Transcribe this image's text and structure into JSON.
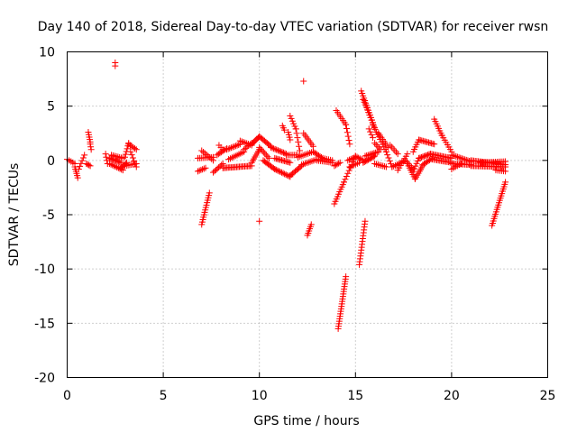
{
  "chart_data": {
    "type": "scatter",
    "title": "Day 140 of 2018, Sidereal Day-to-day VTEC variation (SDTVAR) for receiver rwsn",
    "xlabel": "GPS time / hours",
    "ylabel": "SDTVAR / TECUs",
    "xlim": [
      0,
      25
    ],
    "ylim": [
      -20,
      10
    ],
    "xticks": [
      0,
      5,
      10,
      15,
      20,
      25
    ],
    "xtick_labels": [
      "0",
      "5",
      "10",
      "15",
      "20",
      "25"
    ],
    "yticks": [
      -20,
      -15,
      -10,
      -5,
      0,
      5,
      10
    ],
    "ytick_labels": [
      "-20",
      "-15",
      "-10",
      "-5",
      "0",
      "5",
      "10"
    ],
    "grid": true,
    "marker": "+",
    "color": "#ff0000",
    "segments": [
      {
        "x0": 0.0,
        "y0": 0.1,
        "x1": 0.4,
        "y1": -0.3,
        "n": 5
      },
      {
        "x0": 0.4,
        "y0": -0.6,
        "x1": 0.55,
        "y1": -1.6,
        "n": 6
      },
      {
        "x0": 0.6,
        "y0": -0.8,
        "x1": 0.9,
        "y1": 0.5,
        "n": 6
      },
      {
        "x0": 1.0,
        "y0": -0.3,
        "x1": 1.2,
        "y1": -0.5,
        "n": 4
      },
      {
        "x0": 1.1,
        "y0": 2.6,
        "x1": 1.2,
        "y1": 1.7,
        "n": 5
      },
      {
        "x0": 1.2,
        "y0": 1.5,
        "x1": 1.25,
        "y1": 1.0,
        "n": 3
      },
      {
        "x0": 2.0,
        "y0": 0.6,
        "x1": 2.1,
        "y1": -0.3,
        "n": 4
      },
      {
        "x0": 2.2,
        "y0": 0.2,
        "x1": 2.8,
        "y1": -0.2,
        "n": 10
      },
      {
        "x0": 2.2,
        "y0": -0.3,
        "x1": 2.9,
        "y1": -0.9,
        "n": 10
      },
      {
        "x0": 2.3,
        "y0": 0.5,
        "x1": 2.9,
        "y1": 0.2,
        "n": 8
      },
      {
        "x0": 2.5,
        "y0": 9.0,
        "x1": 2.5,
        "y1": 8.7,
        "n": 2
      },
      {
        "x0": 2.8,
        "y0": -0.7,
        "x1": 3.1,
        "y1": -0.2,
        "n": 6
      },
      {
        "x0": 3.0,
        "y0": 0.3,
        "x1": 3.2,
        "y1": 1.6,
        "n": 6
      },
      {
        "x0": 3.0,
        "y0": -0.5,
        "x1": 3.6,
        "y1": -0.3,
        "n": 8
      },
      {
        "x0": 3.2,
        "y0": 1.5,
        "x1": 3.6,
        "y1": 1.0,
        "n": 6
      },
      {
        "x0": 3.3,
        "y0": 0.8,
        "x1": 3.6,
        "y1": -0.6,
        "n": 6
      },
      {
        "x0": 6.8,
        "y0": -1.0,
        "x1": 7.2,
        "y1": -0.7,
        "n": 6
      },
      {
        "x0": 6.8,
        "y0": 0.2,
        "x1": 7.6,
        "y1": 0.3,
        "n": 10
      },
      {
        "x0": 7.0,
        "y0": -5.9,
        "x1": 7.4,
        "y1": -3.0,
        "n": 14
      },
      {
        "x0": 7.0,
        "y0": 0.9,
        "x1": 7.6,
        "y1": 0.0,
        "n": 8
      },
      {
        "x0": 7.6,
        "y0": -1.1,
        "x1": 8.1,
        "y1": -0.3,
        "n": 8
      },
      {
        "x0": 7.8,
        "y0": 0.5,
        "x1": 8.3,
        "y1": 1.1,
        "n": 8
      },
      {
        "x0": 7.9,
        "y0": 1.4,
        "x1": 8.1,
        "y1": 1.0,
        "n": 3
      },
      {
        "x0": 8.1,
        "y0": -0.7,
        "x1": 9.6,
        "y1": -0.5,
        "n": 22
      },
      {
        "x0": 8.3,
        "y0": 1.0,
        "x1": 9.0,
        "y1": 1.5,
        "n": 10
      },
      {
        "x0": 8.4,
        "y0": 0.1,
        "x1": 9.2,
        "y1": 0.8,
        "n": 10
      },
      {
        "x0": 9.0,
        "y0": 1.8,
        "x1": 9.6,
        "y1": 1.4,
        "n": 8
      },
      {
        "x0": 9.2,
        "y0": 1.0,
        "x1": 9.6,
        "y1": 1.6,
        "n": 6
      },
      {
        "x0": 9.6,
        "y0": 1.5,
        "x1": 10.0,
        "y1": 2.2,
        "n": 8
      },
      {
        "x0": 9.6,
        "y0": -0.2,
        "x1": 10.0,
        "y1": 1.0,
        "n": 8
      },
      {
        "x0": 10.0,
        "y0": -5.6,
        "x1": 10.0,
        "y1": -5.6,
        "n": 1
      },
      {
        "x0": 10.0,
        "y0": 2.2,
        "x1": 10.6,
        "y1": 1.3,
        "n": 10
      },
      {
        "x0": 10.0,
        "y0": 1.2,
        "x1": 10.5,
        "y1": 0.2,
        "n": 8
      },
      {
        "x0": 10.2,
        "y0": 0.0,
        "x1": 10.8,
        "y1": -0.8,
        "n": 10
      },
      {
        "x0": 10.6,
        "y0": 1.2,
        "x1": 11.4,
        "y1": 0.6,
        "n": 12
      },
      {
        "x0": 10.8,
        "y0": -0.8,
        "x1": 11.6,
        "y1": -1.5,
        "n": 12
      },
      {
        "x0": 10.8,
        "y0": 0.2,
        "x1": 11.6,
        "y1": -0.2,
        "n": 12
      },
      {
        "x0": 11.2,
        "y0": 3.2,
        "x1": 11.3,
        "y1": 2.8,
        "n": 3
      },
      {
        "x0": 11.4,
        "y0": 0.5,
        "x1": 12.0,
        "y1": 0.5,
        "n": 8
      },
      {
        "x0": 11.5,
        "y0": 2.6,
        "x1": 11.6,
        "y1": 1.9,
        "n": 4
      },
      {
        "x0": 11.6,
        "y0": -1.4,
        "x1": 12.2,
        "y1": -0.5,
        "n": 10
      },
      {
        "x0": 11.6,
        "y0": 4.1,
        "x1": 11.9,
        "y1": 2.9,
        "n": 6
      },
      {
        "x0": 11.9,
        "y0": 2.9,
        "x1": 12.1,
        "y1": 0.9,
        "n": 6
      },
      {
        "x0": 12.0,
        "y0": 0.3,
        "x1": 12.8,
        "y1": 0.8,
        "n": 10
      },
      {
        "x0": 12.2,
        "y0": -0.4,
        "x1": 13.0,
        "y1": 0.1,
        "n": 10
      },
      {
        "x0": 12.3,
        "y0": 7.3,
        "x1": 12.3,
        "y1": 7.3,
        "n": 1
      },
      {
        "x0": 12.3,
        "y0": 2.5,
        "x1": 12.8,
        "y1": 1.3,
        "n": 8
      },
      {
        "x0": 12.5,
        "y0": -6.9,
        "x1": 12.7,
        "y1": -5.9,
        "n": 6
      },
      {
        "x0": 12.8,
        "y0": 0.8,
        "x1": 13.3,
        "y1": 0.2,
        "n": 8
      },
      {
        "x0": 13.0,
        "y0": 0.0,
        "x1": 13.8,
        "y1": -0.2,
        "n": 10
      },
      {
        "x0": 13.3,
        "y0": 0.2,
        "x1": 13.8,
        "y1": 0.0,
        "n": 6
      },
      {
        "x0": 13.9,
        "y0": -4.0,
        "x1": 14.4,
        "y1": -2.0,
        "n": 10
      },
      {
        "x0": 13.9,
        "y0": -0.5,
        "x1": 14.2,
        "y1": -0.2,
        "n": 5
      },
      {
        "x0": 14.0,
        "y0": 4.6,
        "x1": 14.5,
        "y1": 3.3,
        "n": 8
      },
      {
        "x0": 14.1,
        "y0": -15.5,
        "x1": 14.5,
        "y1": -10.7,
        "n": 22
      },
      {
        "x0": 14.5,
        "y0": 3.3,
        "x1": 14.7,
        "y1": 1.5,
        "n": 6
      },
      {
        "x0": 14.4,
        "y0": -2.0,
        "x1": 15.0,
        "y1": 0.4,
        "n": 10
      },
      {
        "x0": 14.6,
        "y0": 0.0,
        "x1": 15.0,
        "y1": 0.3,
        "n": 6
      },
      {
        "x0": 14.7,
        "y0": -0.6,
        "x1": 15.2,
        "y1": -0.2,
        "n": 6
      },
      {
        "x0": 15.0,
        "y0": 0.4,
        "x1": 15.4,
        "y1": 0.0,
        "n": 6
      },
      {
        "x0": 15.2,
        "y0": -9.6,
        "x1": 15.5,
        "y1": -5.6,
        "n": 16
      },
      {
        "x0": 15.3,
        "y0": 6.4,
        "x1": 15.9,
        "y1": 3.5,
        "n": 14
      },
      {
        "x0": 15.4,
        "y0": -0.2,
        "x1": 16.0,
        "y1": 0.4,
        "n": 10
      },
      {
        "x0": 15.4,
        "y0": 5.6,
        "x1": 16.0,
        "y1": 3.0,
        "n": 12
      },
      {
        "x0": 15.5,
        "y0": 0.4,
        "x1": 16.2,
        "y1": 0.8,
        "n": 10
      },
      {
        "x0": 15.7,
        "y0": 2.9,
        "x1": 15.9,
        "y1": 2.1,
        "n": 4
      },
      {
        "x0": 15.9,
        "y0": 3.3,
        "x1": 16.6,
        "y1": 0.8,
        "n": 12
      },
      {
        "x0": 16.0,
        "y0": -0.3,
        "x1": 16.6,
        "y1": -0.6,
        "n": 8
      },
      {
        "x0": 16.0,
        "y0": 1.6,
        "x1": 16.3,
        "y1": 1.0,
        "n": 5
      },
      {
        "x0": 16.2,
        "y0": 2.5,
        "x1": 16.7,
        "y1": 1.2,
        "n": 8
      },
      {
        "x0": 16.6,
        "y0": 0.8,
        "x1": 16.9,
        "y1": -0.6,
        "n": 6
      },
      {
        "x0": 16.9,
        "y0": -0.6,
        "x1": 17.5,
        "y1": -0.1,
        "n": 8
      },
      {
        "x0": 16.8,
        "y0": 1.4,
        "x1": 17.2,
        "y1": 0.6,
        "n": 6
      },
      {
        "x0": 17.2,
        "y0": -0.9,
        "x1": 17.7,
        "y1": 0.6,
        "n": 8
      },
      {
        "x0": 17.6,
        "y0": 0.0,
        "x1": 18.0,
        "y1": -0.8,
        "n": 6
      },
      {
        "x0": 17.7,
        "y0": -0.3,
        "x1": 18.1,
        "y1": -1.7,
        "n": 8
      },
      {
        "x0": 18.0,
        "y0": -1.0,
        "x1": 18.3,
        "y1": 0.2,
        "n": 6
      },
      {
        "x0": 18.0,
        "y0": 0.8,
        "x1": 18.3,
        "y1": 1.9,
        "n": 6
      },
      {
        "x0": 18.1,
        "y0": -1.7,
        "x1": 18.5,
        "y1": -0.5,
        "n": 8
      },
      {
        "x0": 18.3,
        "y0": 1.9,
        "x1": 19.1,
        "y1": 1.5,
        "n": 12
      },
      {
        "x0": 18.3,
        "y0": 0.2,
        "x1": 18.9,
        "y1": 0.6,
        "n": 10
      },
      {
        "x0": 18.5,
        "y0": -0.4,
        "x1": 19.0,
        "y1": 0.2,
        "n": 8
      },
      {
        "x0": 18.9,
        "y0": 0.6,
        "x1": 20.0,
        "y1": 0.2,
        "n": 16
      },
      {
        "x0": 19.0,
        "y0": 0.1,
        "x1": 20.0,
        "y1": -0.2,
        "n": 14
      },
      {
        "x0": 19.1,
        "y0": 3.8,
        "x1": 19.5,
        "y1": 2.3,
        "n": 8
      },
      {
        "x0": 19.5,
        "y0": 2.3,
        "x1": 20.0,
        "y1": 0.8,
        "n": 8
      },
      {
        "x0": 20.0,
        "y0": 0.5,
        "x1": 21.0,
        "y1": -0.1,
        "n": 14
      },
      {
        "x0": 20.0,
        "y0": -0.3,
        "x1": 21.0,
        "y1": -0.4,
        "n": 14
      },
      {
        "x0": 20.0,
        "y0": -0.8,
        "x1": 20.5,
        "y1": -0.3,
        "n": 6
      },
      {
        "x0": 21.0,
        "y0": 0.0,
        "x1": 22.8,
        "y1": -0.4,
        "n": 24
      },
      {
        "x0": 21.0,
        "y0": -0.5,
        "x1": 22.8,
        "y1": -0.6,
        "n": 24
      },
      {
        "x0": 21.5,
        "y0": -0.2,
        "x1": 22.8,
        "y1": -0.1,
        "n": 16
      },
      {
        "x0": 22.1,
        "y0": -6.0,
        "x1": 22.8,
        "y1": -2.0,
        "n": 20
      },
      {
        "x0": 22.3,
        "y0": -0.9,
        "x1": 22.8,
        "y1": -1.0,
        "n": 6
      }
    ]
  }
}
